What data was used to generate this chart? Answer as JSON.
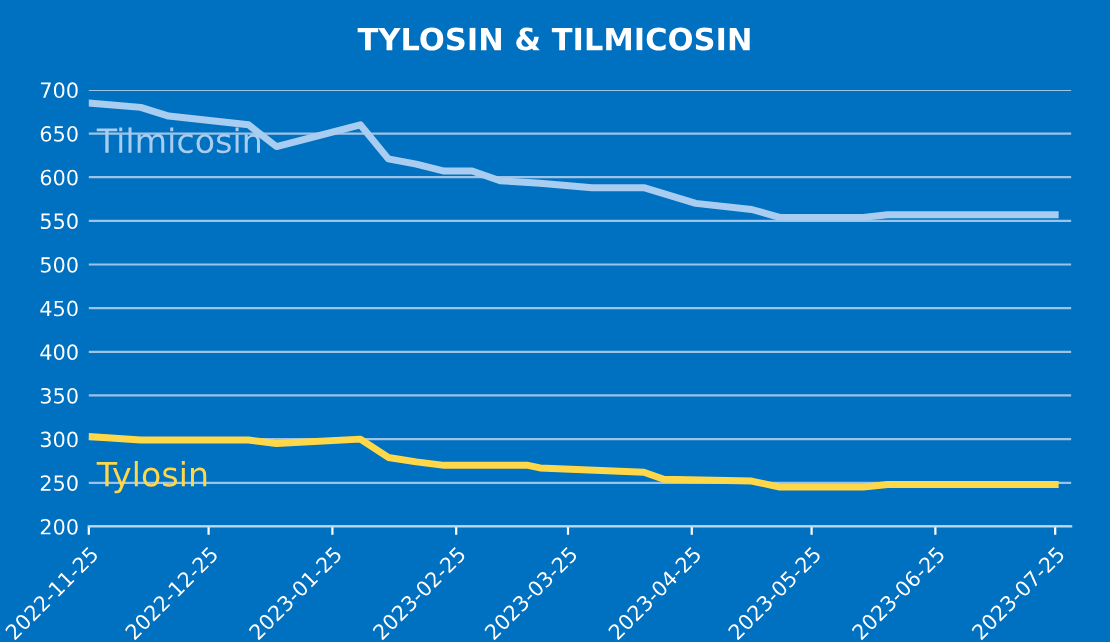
{
  "chart_data": {
    "type": "line",
    "title": "TYLOSIN & TILMICOSIN",
    "series": [
      {
        "name": "Tilmicosin",
        "color": "#a9cdf0",
        "x": [
          "2022-11-25",
          "2022-12-08",
          "2022-12-15",
          "2023-01-04",
          "2023-01-11",
          "2023-02-01",
          "2023-02-08",
          "2023-02-15",
          "2023-02-22",
          "2023-03-01",
          "2023-03-08",
          "2023-03-18",
          "2023-03-31",
          "2023-04-13",
          "2023-04-26",
          "2023-05-10",
          "2023-05-17",
          "2023-06-07",
          "2023-06-13",
          "2023-07-25"
        ],
        "values": [
          685,
          680,
          670,
          660,
          635,
          660,
          621,
          615,
          607,
          607,
          596,
          593,
          588,
          588,
          570,
          563,
          554,
          554,
          557,
          557
        ]
      },
      {
        "name": "Tylosin",
        "color": "#ffd84a",
        "x": [
          "2022-11-25",
          "2022-12-08",
          "2023-01-04",
          "2023-01-11",
          "2023-02-01",
          "2023-02-08",
          "2023-02-15",
          "2023-02-22",
          "2023-03-15",
          "2023-03-18",
          "2023-04-13",
          "2023-04-18",
          "2023-05-10",
          "2023-05-17",
          "2023-06-07",
          "2023-06-13",
          "2023-07-25"
        ],
        "values": [
          303,
          299,
          299,
          295,
          300,
          279,
          274,
          270,
          270,
          267,
          262,
          254,
          252,
          245,
          245,
          248,
          248
        ]
      }
    ],
    "xlim": [
      "2022-11-25",
      "2023-07-29"
    ],
    "xticks": [
      "2022-11-25",
      "2022-12-25",
      "2023-01-25",
      "2023-02-25",
      "2023-03-25",
      "2023-04-25",
      "2023-05-25",
      "2023-06-25",
      "2023-07-25"
    ],
    "ylim": [
      200,
      700
    ],
    "yticks": [
      200,
      250,
      300,
      350,
      400,
      450,
      500,
      550,
      600,
      650,
      700
    ],
    "grid": "y",
    "legend": false,
    "marker": "none",
    "line_style": "solid"
  }
}
